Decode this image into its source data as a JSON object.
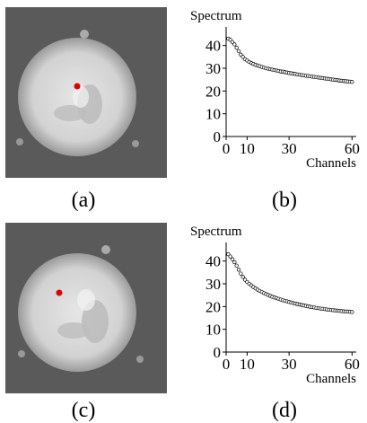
{
  "figure": {
    "panels": [
      {
        "id": "a",
        "caption": "(a)",
        "marker_color": "#e00000"
      },
      {
        "id": "b",
        "caption": "(b)"
      },
      {
        "id": "c",
        "caption": "(c)",
        "marker_color": "#e00000"
      },
      {
        "id": "d",
        "caption": "(d)"
      }
    ]
  },
  "chart_data": [
    {
      "type": "scatter",
      "title": "Spectrum",
      "xlabel": "Channels",
      "ylabel": "",
      "xlim": [
        0,
        62
      ],
      "ylim": [
        0,
        45
      ],
      "xticks": [
        0,
        10,
        30,
        60
      ],
      "yticks": [
        0,
        10,
        20,
        30,
        40
      ],
      "series": [
        {
          "x": [
            1,
            2,
            3,
            4,
            5,
            6,
            7,
            8,
            9,
            10,
            11,
            12,
            13,
            14,
            15,
            16,
            17,
            18,
            19,
            20,
            21,
            22,
            23,
            24,
            25,
            26,
            27,
            28,
            29,
            30,
            31,
            32,
            33,
            34,
            35,
            36,
            37,
            38,
            39,
            40,
            41,
            42,
            43,
            44,
            45,
            46,
            47,
            48,
            49,
            50,
            51,
            52,
            53,
            54,
            55,
            56,
            57,
            58,
            59,
            60
          ],
          "y": [
            43,
            42.5,
            41.5,
            40.5,
            39,
            37.5,
            36,
            35,
            34,
            33.4,
            32.8,
            32.3,
            31.9,
            31.5,
            31.2,
            30.9,
            30.6,
            30.3,
            30,
            29.8,
            29.6,
            29.4,
            29.2,
            29,
            28.8,
            28.6,
            28.5,
            28.3,
            28.1,
            27.9,
            27.8,
            27.6,
            27.5,
            27.3,
            27.2,
            27,
            26.9,
            26.7,
            26.6,
            26.5,
            26.3,
            26.2,
            26.1,
            25.9,
            25.8,
            25.7,
            25.5,
            25.4,
            25.3,
            25.1,
            25,
            24.9,
            24.8,
            24.6,
            24.5,
            24.4,
            24.3,
            24.2,
            24.1,
            24
          ]
        }
      ]
    },
    {
      "type": "scatter",
      "title": "Spectrum",
      "xlabel": "Channels",
      "ylabel": "",
      "xlim": [
        0,
        62
      ],
      "ylim": [
        0,
        45
      ],
      "xticks": [
        0,
        10,
        30,
        60
      ],
      "yticks": [
        0,
        10,
        20,
        30,
        40
      ],
      "series": [
        {
          "x": [
            1,
            2,
            3,
            4,
            5,
            6,
            7,
            8,
            9,
            10,
            11,
            12,
            13,
            14,
            15,
            16,
            17,
            18,
            19,
            20,
            21,
            22,
            23,
            24,
            25,
            26,
            27,
            28,
            29,
            30,
            31,
            32,
            33,
            34,
            35,
            36,
            37,
            38,
            39,
            40,
            41,
            42,
            43,
            44,
            45,
            46,
            47,
            48,
            49,
            50,
            51,
            52,
            53,
            54,
            55,
            56,
            57,
            58,
            59,
            60
          ],
          "y": [
            43,
            42,
            40.8,
            39.5,
            38,
            36.2,
            34.5,
            33,
            31.8,
            30.8,
            30,
            29.3,
            28.6,
            28,
            27.4,
            26.9,
            26.4,
            25.9,
            25.5,
            25.1,
            24.7,
            24.3,
            24,
            23.7,
            23.4,
            23.1,
            22.8,
            22.5,
            22.3,
            22,
            21.8,
            21.5,
            21.3,
            21.1,
            20.9,
            20.7,
            20.5,
            20.3,
            20.1,
            19.9,
            19.8,
            19.6,
            19.4,
            19.3,
            19.1,
            19,
            18.9,
            18.7,
            18.6,
            18.5,
            18.4,
            18.3,
            18.2,
            18.1,
            18,
            17.9,
            17.8,
            17.8,
            17.7,
            17.6
          ]
        }
      ]
    }
  ]
}
